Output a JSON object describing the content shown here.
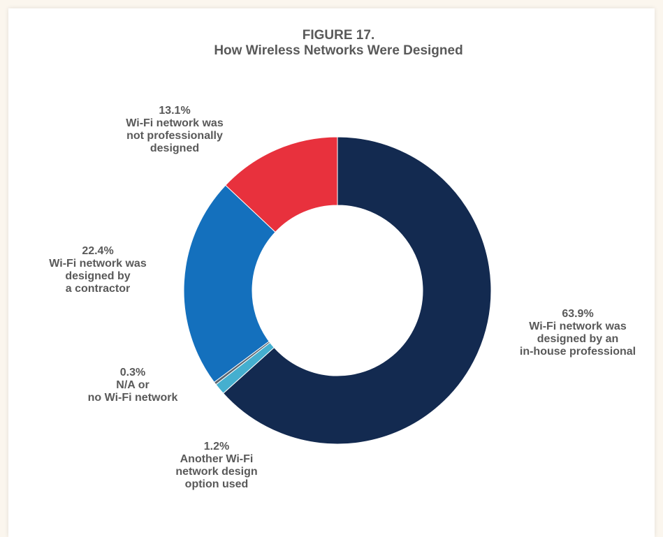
{
  "chart_data": {
    "type": "pie",
    "title_line1": "FIGURE 17.",
    "title_line2": "How Wireless Networks Were Designed",
    "slices": [
      {
        "value": 63.9,
        "pct_label": "63.9%",
        "lines": [
          "Wi-Fi network was",
          "designed by an",
          "in-house professional"
        ],
        "color": "#132a50"
      },
      {
        "value": 1.2,
        "pct_label": "1.2%",
        "lines": [
          "Another Wi-Fi",
          "network design",
          "option used"
        ],
        "color": "#45afcf"
      },
      {
        "value": 0.3,
        "pct_label": "0.3%",
        "lines": [
          "N/A or",
          "no Wi-Fi network"
        ],
        "color": "#5b6570"
      },
      {
        "value": 22.4,
        "pct_label": "22.4%",
        "lines": [
          "Wi-Fi network was",
          "designed by",
          "a contractor"
        ],
        "color": "#1470bd"
      },
      {
        "value": 13.1,
        "pct_label": "13.1%",
        "lines": [
          "Wi-Fi network was",
          "not professionally",
          "designed"
        ],
        "color": "#e8313d"
      }
    ]
  }
}
